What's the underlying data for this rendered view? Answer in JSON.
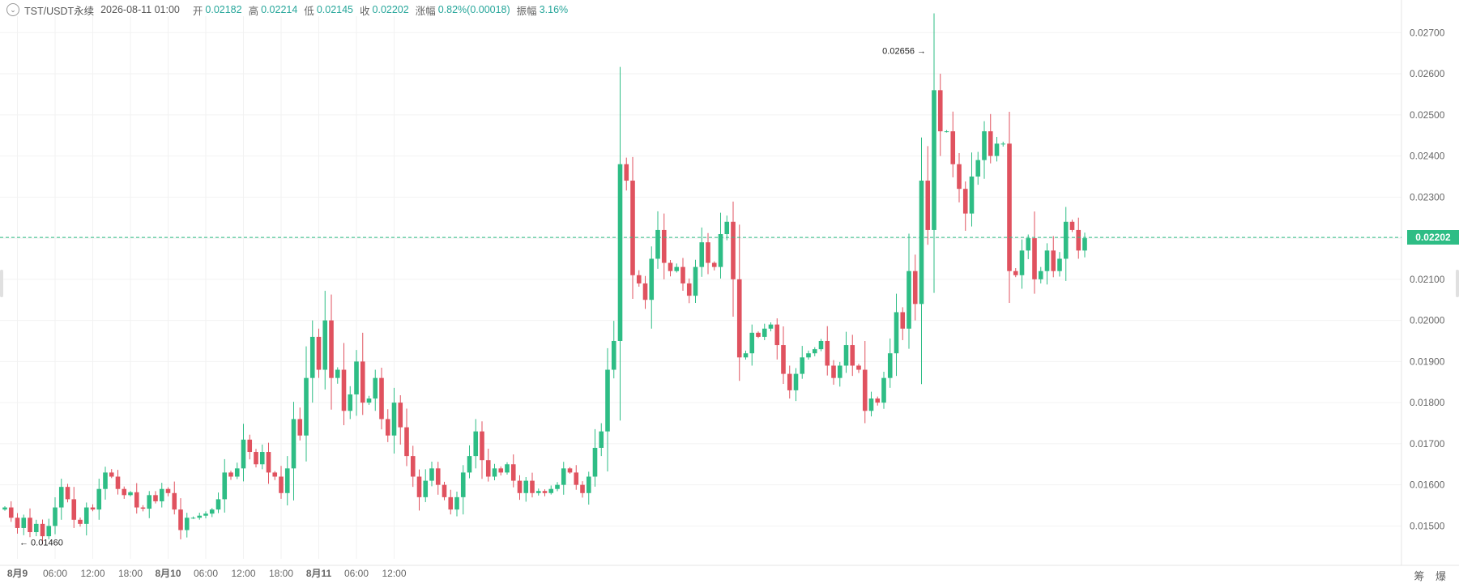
{
  "info": {
    "symbol": "TST/USDT永续",
    "datetime": "2026-08-11 01:00",
    "open_label": "开",
    "open": "0.02182",
    "high_label": "高",
    "high": "0.02214",
    "low_label": "低",
    "low": "0.02145",
    "close_label": "收",
    "close": "0.02202",
    "change_label": "涨幅",
    "change": "0.82%(0.00018)",
    "amplitude_label": "振幅",
    "amplitude": "3.16%"
  },
  "corner": {
    "btn1": "筹",
    "btn2": "爆"
  },
  "colors": {
    "up": "#2ebd85",
    "down": "#e0525f",
    "grid": "#f2f2f2",
    "current_line": "#2ebd85"
  },
  "chart_data": {
    "type": "candlestick",
    "interval_hours": 1,
    "start": "2026-08-08 22:00",
    "current_price": 0.02202,
    "current_price_label": "0.02202",
    "annotations": [
      {
        "label": "0.02656",
        "price": 0.02656,
        "kind": "high"
      },
      {
        "label": "0.01460",
        "price": 0.0146,
        "kind": "low"
      }
    ],
    "y_ticks": [
      "0.02700",
      "0.02600",
      "0.02500",
      "0.02400",
      "0.02300",
      "0.02200",
      "0.02100",
      "0.02000",
      "0.01900",
      "0.01800",
      "0.01700",
      "0.01600",
      "0.01500"
    ],
    "ylim": [
      0.0142,
      0.0274
    ],
    "x_ticks": [
      "8月9",
      "06:00",
      "12:00",
      "18:00",
      "8月10",
      "06:00",
      "12:00",
      "18:00",
      "8月11",
      "06:00",
      "12:00"
    ],
    "close": [
      0.01545,
      0.0152,
      0.01495,
      0.0152,
      0.01485,
      0.01505,
      0.01475,
      0.015,
      0.01545,
      0.01595,
      0.01565,
      0.01515,
      0.01505,
      0.01545,
      0.0154,
      0.0159,
      0.0163,
      0.0162,
      0.0159,
      0.01575,
      0.01582,
      0.01545,
      0.01542,
      0.01575,
      0.0156,
      0.0159,
      0.0158,
      0.0154,
      0.0149,
      0.0152,
      0.0152,
      0.01525,
      0.0153,
      0.0154,
      0.01565,
      0.0163,
      0.0162,
      0.0164,
      0.0171,
      0.0168,
      0.0165,
      0.0168,
      0.0163,
      0.0162,
      0.0158,
      0.0164,
      0.0176,
      0.0172,
      0.0186,
      0.0196,
      0.0188,
      0.02,
      0.0186,
      0.0188,
      0.0178,
      0.0182,
      0.019,
      0.018,
      0.0181,
      0.0186,
      0.0176,
      0.0172,
      0.018,
      0.0174,
      0.0167,
      0.0162,
      0.0157,
      0.0161,
      0.0164,
      0.016,
      0.0157,
      0.0154,
      0.0157,
      0.0163,
      0.0167,
      0.0173,
      0.0166,
      0.0162,
      0.0164,
      0.0163,
      0.0165,
      0.0161,
      0.0158,
      0.0161,
      0.0158,
      0.01585,
      0.0158,
      0.0159,
      0.016,
      0.0164,
      0.0163,
      0.016,
      0.0158,
      0.0162,
      0.0169,
      0.0173,
      0.0188,
      0.0195,
      0.0238,
      0.0234,
      0.0211,
      0.0209,
      0.0205,
      0.0215,
      0.0222,
      0.0214,
      0.0212,
      0.0213,
      0.0209,
      0.0206,
      0.0213,
      0.0219,
      0.0214,
      0.0213,
      0.0221,
      0.0224,
      0.021,
      0.0191,
      0.0192,
      0.0197,
      0.0196,
      0.0198,
      0.0199,
      0.0194,
      0.0187,
      0.0183,
      0.0187,
      0.0191,
      0.0192,
      0.0193,
      0.0195,
      0.0189,
      0.0186,
      0.0189,
      0.0194,
      0.0189,
      0.0188,
      0.0178,
      0.0181,
      0.018,
      0.0186,
      0.0192,
      0.0202,
      0.0198,
      0.0212,
      0.0204,
      0.0234,
      0.0222,
      0.0256,
      0.0246,
      0.0246,
      0.0238,
      0.0232,
      0.0226,
      0.0235,
      0.0239,
      0.0246,
      0.024,
      0.0243,
      0.0243,
      0.0212,
      0.0211,
      0.0217,
      0.022,
      0.021,
      0.0212,
      0.0217,
      0.0212,
      0.0215,
      0.0224,
      0.0222,
      0.0217,
      0.022
    ]
  }
}
